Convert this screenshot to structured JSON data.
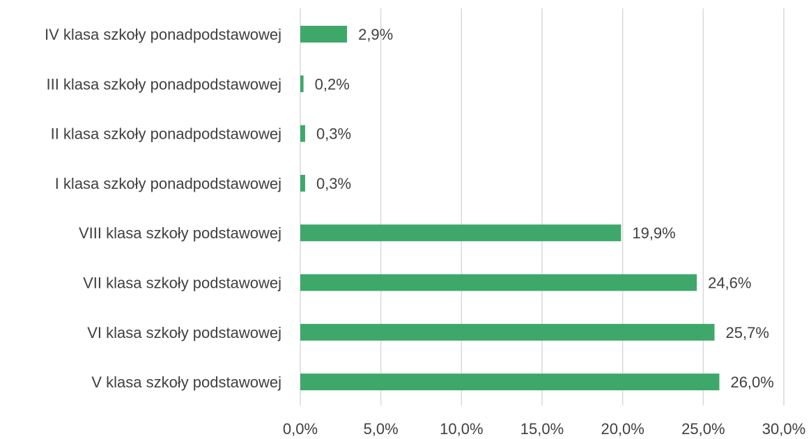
{
  "chart_data": {
    "type": "bar",
    "orientation": "horizontal",
    "categories": [
      "IV klasa szkoły ponadpodstawowej",
      "III klasa szkoły ponadpodstawowej",
      "II klasa szkoły ponadpodstawowej",
      "I klasa szkoły ponadpodstawowej",
      "VIII klasa szkoły podstawowej",
      "VII klasa szkoły podstawowej",
      "VI klasa szkoły podstawowej",
      "V klasa szkoły podstawowej"
    ],
    "values": [
      2.9,
      0.2,
      0.3,
      0.3,
      19.9,
      24.6,
      25.7,
      26.0
    ],
    "data_labels": [
      "2,9%",
      "0,2%",
      "0,3%",
      "0,3%",
      "19,9%",
      "24,6%",
      "25,7%",
      "26,0%"
    ],
    "xlim": [
      0,
      30
    ],
    "x_ticks": [
      0,
      5,
      10,
      15,
      20,
      25,
      30
    ],
    "x_tick_labels": [
      "0,0%",
      "5,0%",
      "10,0%",
      "15,0%",
      "20,0%",
      "25,0%",
      "30,0%"
    ],
    "bar_color": "#3ea86b",
    "grid": true,
    "legend": "none"
  }
}
